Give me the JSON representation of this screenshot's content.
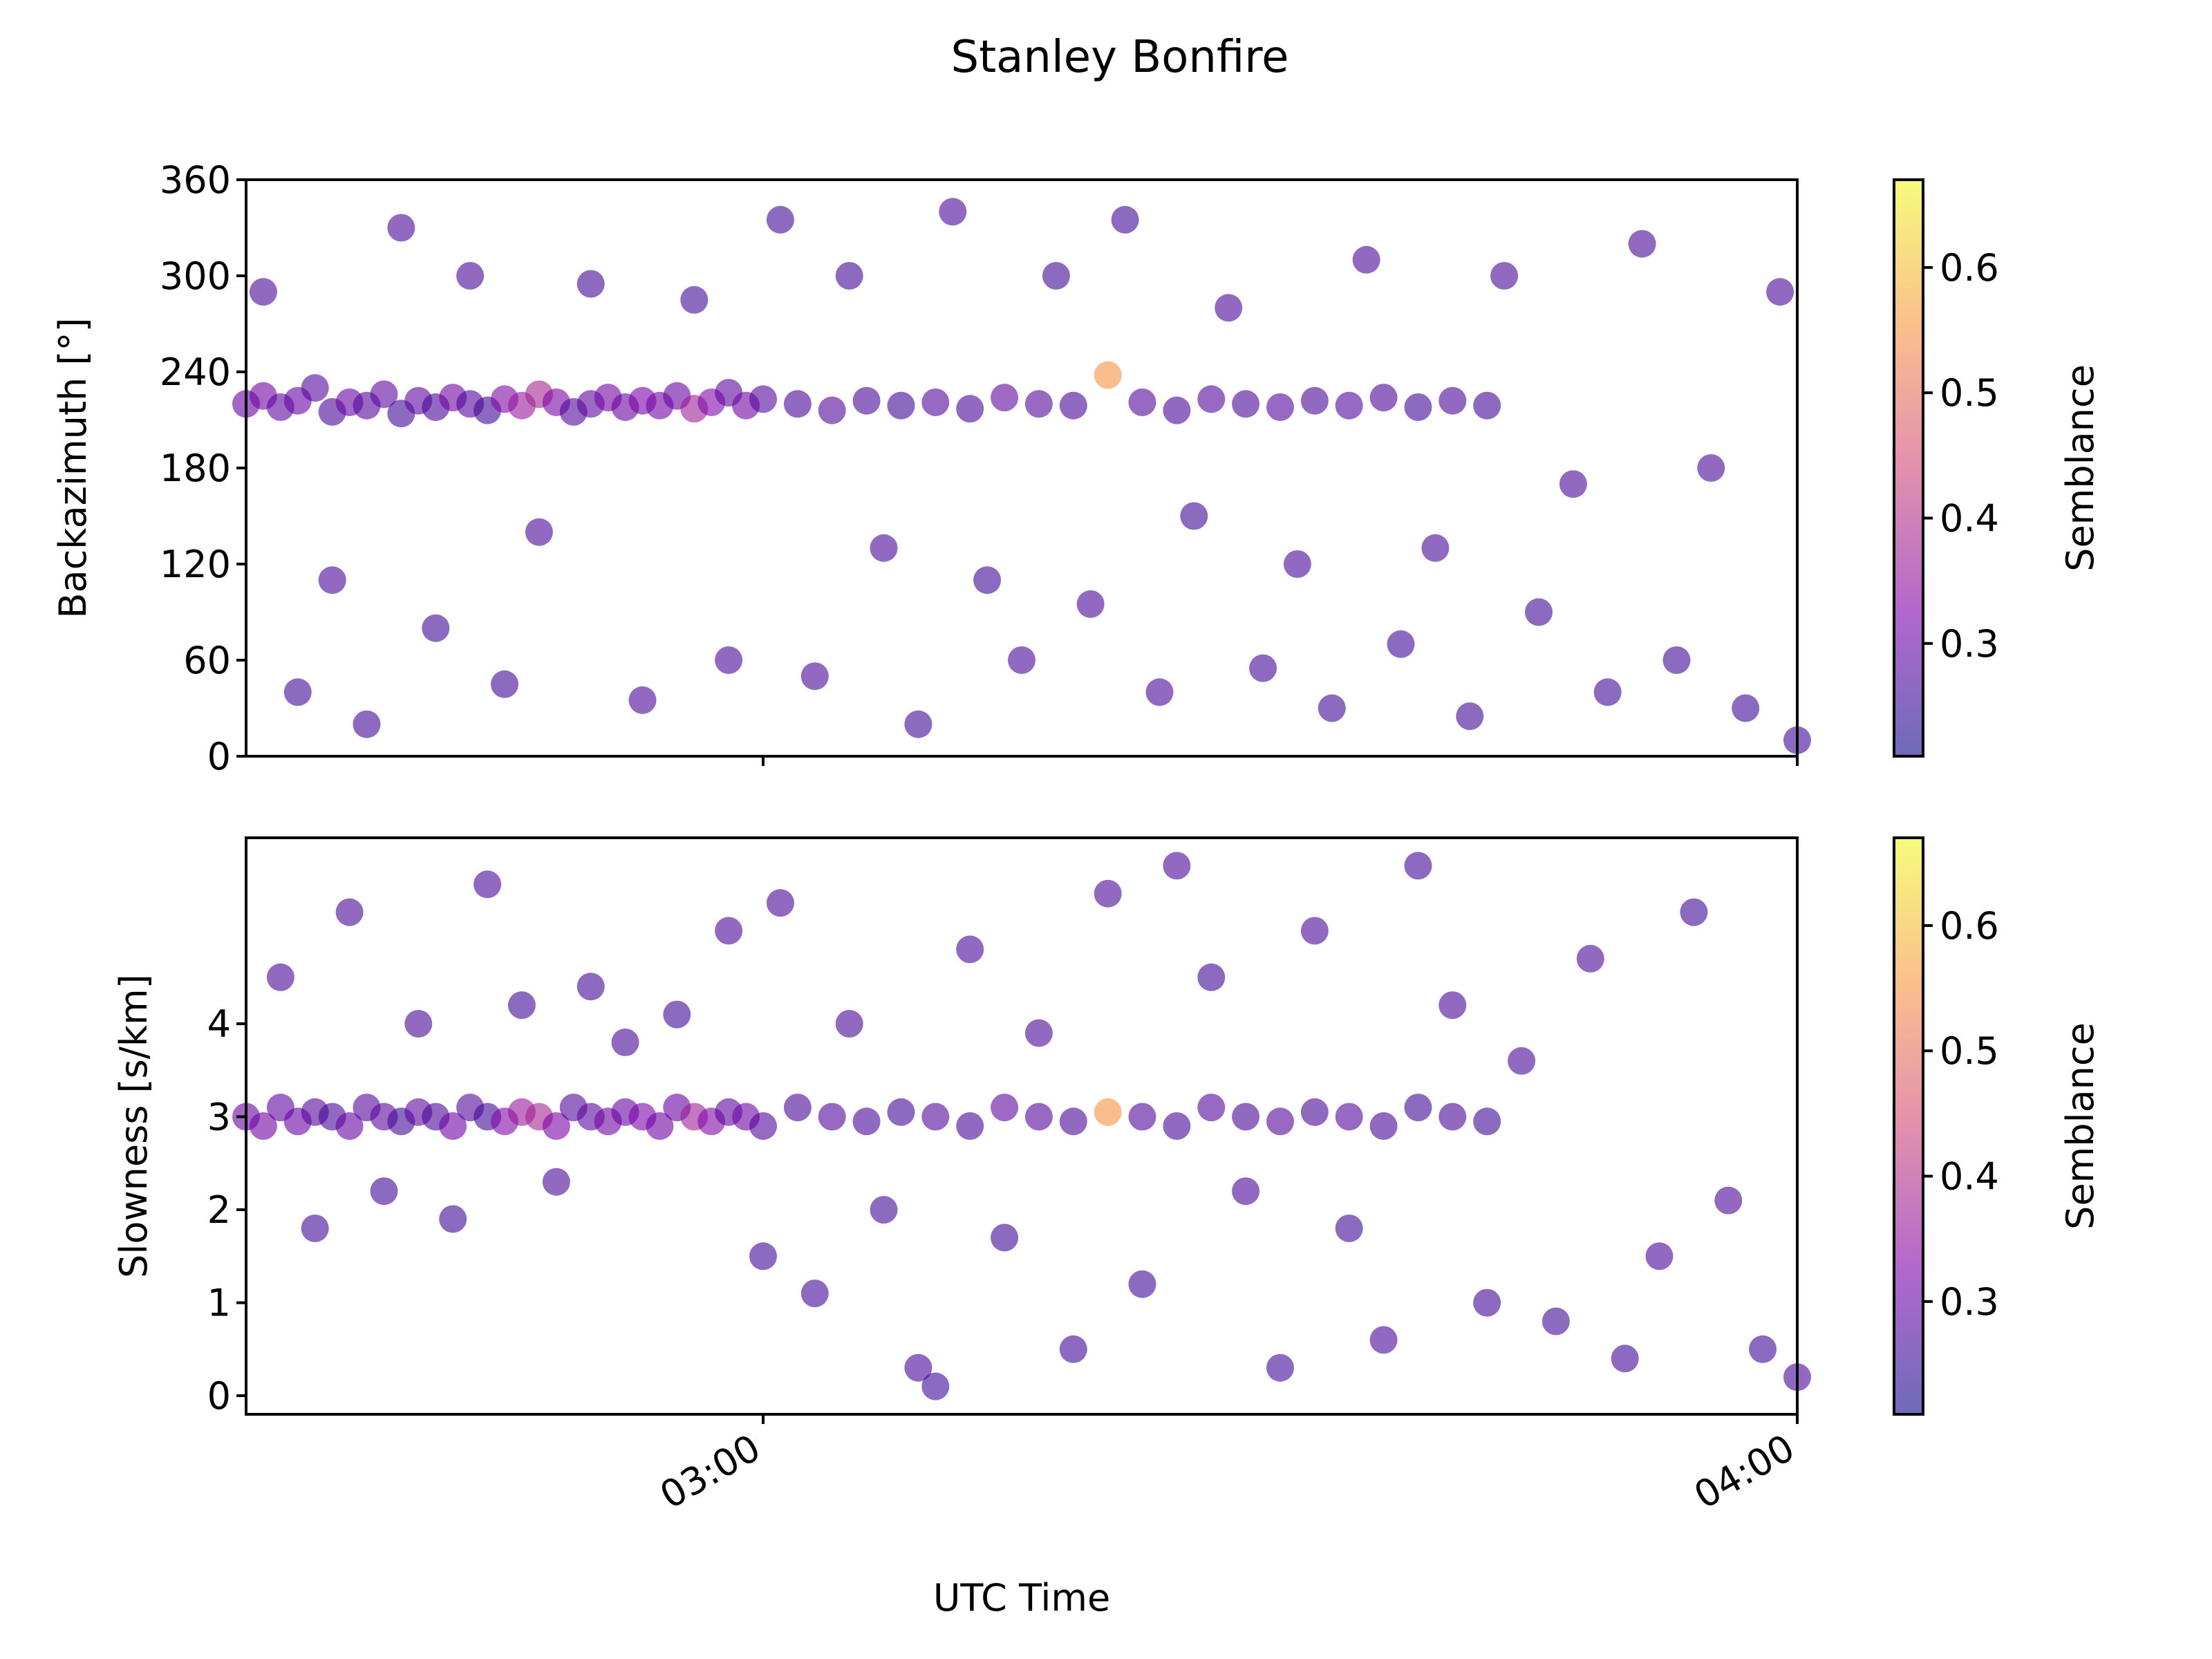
{
  "chart_data": [
    {
      "type": "scatter",
      "title": "Stanley Bonfire",
      "ylabel": "Backazimuth [$^o$]",
      "ylabel_display": "Backazimuth [°]",
      "ylim": [
        0,
        360
      ],
      "yticks": [
        0,
        60,
        120,
        180,
        240,
        300,
        360
      ],
      "xlim": [
        "02:30",
        "04:00"
      ],
      "xticks": [
        "03:00",
        "04:00"
      ],
      "colorbar": {
        "label": "Semblance",
        "range": [
          0.21,
          0.67
        ],
        "ticks": [
          0.3,
          0.4,
          0.5,
          0.6
        ],
        "colormap": "plasma",
        "alpha": 0.6
      },
      "description": "Dense persistent cluster near 210-230° across the full window; scattered detections elsewhere between 0° and 360°.",
      "series": [
        {
          "points": [
            [
              "02:30",
              220,
              0.3
            ],
            [
              "02:31",
              225,
              0.31
            ],
            [
              "02:32",
              218,
              0.29
            ],
            [
              "02:33",
              222,
              0.3
            ],
            [
              "02:34",
              230,
              0.28
            ],
            [
              "02:35",
              215,
              0.27
            ],
            [
              "02:36",
              221,
              0.3
            ],
            [
              "02:37",
              219,
              0.28
            ],
            [
              "02:38",
              226,
              0.29
            ],
            [
              "02:39",
              214,
              0.26
            ],
            [
              "02:40",
              222,
              0.29
            ],
            [
              "02:41",
              218,
              0.27
            ],
            [
              "02:42",
              224,
              0.31
            ],
            [
              "02:43",
              220,
              0.28
            ],
            [
              "02:44",
              216,
              0.26
            ],
            [
              "02:45",
              223,
              0.33
            ],
            [
              "02:46",
              219,
              0.36
            ],
            [
              "02:47",
              226,
              0.38
            ],
            [
              "02:48",
              221,
              0.32
            ],
            [
              "02:49",
              215,
              0.28
            ],
            [
              "02:50",
              220,
              0.29
            ],
            [
              "02:51",
              224,
              0.31
            ],
            [
              "02:52",
              218,
              0.3
            ],
            [
              "02:53",
              222,
              0.32
            ],
            [
              "02:54",
              219,
              0.31
            ],
            [
              "02:55",
              225,
              0.3
            ],
            [
              "02:56",
              217,
              0.37
            ],
            [
              "02:57",
              221,
              0.33
            ],
            [
              "02:58",
              227,
              0.29
            ],
            [
              "02:59",
              219,
              0.31
            ],
            [
              "03:00",
              223,
              0.28
            ],
            [
              "03:02",
              220,
              0.27
            ],
            [
              "03:04",
              216,
              0.28
            ],
            [
              "03:06",
              222,
              0.27
            ],
            [
              "03:08",
              219,
              0.26
            ],
            [
              "03:10",
              221,
              0.28
            ],
            [
              "03:12",
              217,
              0.27
            ],
            [
              "03:14",
              224,
              0.29
            ],
            [
              "03:16",
              220,
              0.28
            ],
            [
              "03:18",
              219,
              0.27
            ],
            [
              "03:20",
              238,
              0.55
            ],
            [
              "03:22",
              221,
              0.28
            ],
            [
              "03:24",
              216,
              0.27
            ],
            [
              "03:26",
              223,
              0.28
            ],
            [
              "03:28",
              220,
              0.27
            ],
            [
              "03:30",
              218,
              0.28
            ],
            [
              "03:32",
              222,
              0.27
            ],
            [
              "03:34",
              219,
              0.28
            ],
            [
              "03:36",
              224,
              0.27
            ],
            [
              "03:38",
              218,
              0.26
            ],
            [
              "03:40",
              222,
              0.27
            ],
            [
              "03:42",
              219,
              0.26
            ],
            [
              "02:31",
              290,
              0.27
            ],
            [
              "02:33",
              40,
              0.26
            ],
            [
              "02:35",
              110,
              0.27
            ],
            [
              "02:37",
              20,
              0.26
            ],
            [
              "02:39",
              330,
              0.27
            ],
            [
              "02:41",
              80,
              0.26
            ],
            [
              "02:43",
              300,
              0.27
            ],
            [
              "02:45",
              45,
              0.26
            ],
            [
              "02:47",
              140,
              0.27
            ],
            [
              "02:50",
              295,
              0.26
            ],
            [
              "02:53",
              35,
              0.27
            ],
            [
              "02:56",
              285,
              0.26
            ],
            [
              "02:58",
              60,
              0.27
            ],
            [
              "03:01",
              335,
              0.26
            ],
            [
              "03:03",
              50,
              0.27
            ],
            [
              "03:05",
              300,
              0.26
            ],
            [
              "03:07",
              130,
              0.27
            ],
            [
              "03:09",
              20,
              0.26
            ],
            [
              "03:11",
              340,
              0.27
            ],
            [
              "03:13",
              110,
              0.26
            ],
            [
              "03:15",
              60,
              0.27
            ],
            [
              "03:17",
              300,
              0.26
            ],
            [
              "03:19",
              95,
              0.27
            ],
            [
              "03:21",
              335,
              0.26
            ],
            [
              "03:23",
              40,
              0.27
            ],
            [
              "03:25",
              150,
              0.26
            ],
            [
              "03:27",
              280,
              0.27
            ],
            [
              "03:29",
              55,
              0.26
            ],
            [
              "03:31",
              120,
              0.27
            ],
            [
              "03:33",
              30,
              0.26
            ],
            [
              "03:35",
              310,
              0.27
            ],
            [
              "03:37",
              70,
              0.26
            ],
            [
              "03:39",
              130,
              0.27
            ],
            [
              "03:41",
              25,
              0.26
            ],
            [
              "03:43",
              300,
              0.27
            ],
            [
              "03:45",
              90,
              0.26
            ],
            [
              "03:47",
              170,
              0.27
            ],
            [
              "03:49",
              40,
              0.26
            ],
            [
              "03:51",
              320,
              0.27
            ],
            [
              "03:53",
              60,
              0.26
            ],
            [
              "03:55",
              180,
              0.27
            ],
            [
              "03:57",
              30,
              0.26
            ],
            [
              "03:59",
              290,
              0.27
            ],
            [
              "04:00",
              10,
              0.26
            ]
          ]
        }
      ]
    },
    {
      "type": "scatter",
      "ylabel": "Slowness [s/km]",
      "xlabel": "UTC Time",
      "ylim": [
        -0.2,
        6.0
      ],
      "yticks": [
        0,
        1,
        2,
        3,
        4
      ],
      "xlim": [
        "02:30",
        "04:00"
      ],
      "xticks": [
        "03:00",
        "04:00"
      ],
      "colorbar": {
        "label": "Semblance",
        "range": [
          0.21,
          0.67
        ],
        "ticks": [
          0.3,
          0.4,
          0.5,
          0.6
        ],
        "colormap": "plasma",
        "alpha": 0.6
      },
      "description": "Dense band near 3 s/km across the window with scatter from 0 to about 5.8 s/km.",
      "series": [
        {
          "points": [
            [
              "02:30",
              3.0,
              0.3
            ],
            [
              "02:31",
              2.9,
              0.31
            ],
            [
              "02:32",
              3.1,
              0.29
            ],
            [
              "02:33",
              2.95,
              0.3
            ],
            [
              "02:34",
              3.05,
              0.28
            ],
            [
              "02:35",
              3.0,
              0.27
            ],
            [
              "02:36",
              2.9,
              0.3
            ],
            [
              "02:37",
              3.1,
              0.28
            ],
            [
              "02:38",
              3.0,
              0.29
            ],
            [
              "02:39",
              2.95,
              0.26
            ],
            [
              "02:40",
              3.05,
              0.29
            ],
            [
              "02:41",
              3.0,
              0.27
            ],
            [
              "02:42",
              2.9,
              0.31
            ],
            [
              "02:43",
              3.1,
              0.28
            ],
            [
              "02:44",
              3.0,
              0.26
            ],
            [
              "02:45",
              2.95,
              0.33
            ],
            [
              "02:46",
              3.05,
              0.36
            ],
            [
              "02:47",
              3.0,
              0.38
            ],
            [
              "02:48",
              2.9,
              0.32
            ],
            [
              "02:49",
              3.1,
              0.28
            ],
            [
              "02:50",
              3.0,
              0.29
            ],
            [
              "02:51",
              2.95,
              0.31
            ],
            [
              "02:52",
              3.05,
              0.3
            ],
            [
              "02:53",
              3.0,
              0.32
            ],
            [
              "02:54",
              2.9,
              0.31
            ],
            [
              "02:55",
              3.1,
              0.3
            ],
            [
              "02:56",
              3.0,
              0.37
            ],
            [
              "02:57",
              2.95,
              0.33
            ],
            [
              "02:58",
              3.05,
              0.29
            ],
            [
              "02:59",
              3.0,
              0.31
            ],
            [
              "03:00",
              2.9,
              0.28
            ],
            [
              "03:02",
              3.1,
              0.27
            ],
            [
              "03:04",
              3.0,
              0.28
            ],
            [
              "03:06",
              2.95,
              0.27
            ],
            [
              "03:08",
              3.05,
              0.26
            ],
            [
              "03:10",
              3.0,
              0.28
            ],
            [
              "03:12",
              2.9,
              0.27
            ],
            [
              "03:14",
              3.1,
              0.29
            ],
            [
              "03:16",
              3.0,
              0.28
            ],
            [
              "03:18",
              2.95,
              0.27
            ],
            [
              "03:20",
              3.05,
              0.55
            ],
            [
              "03:22",
              3.0,
              0.28
            ],
            [
              "03:24",
              2.9,
              0.27
            ],
            [
              "03:26",
              3.1,
              0.28
            ],
            [
              "03:28",
              3.0,
              0.27
            ],
            [
              "03:30",
              2.95,
              0.28
            ],
            [
              "03:32",
              3.05,
              0.27
            ],
            [
              "03:34",
              3.0,
              0.28
            ],
            [
              "03:36",
              2.9,
              0.27
            ],
            [
              "03:38",
              3.1,
              0.26
            ],
            [
              "03:40",
              3.0,
              0.27
            ],
            [
              "03:42",
              2.95,
              0.26
            ],
            [
              "02:32",
              4.5,
              0.27
            ],
            [
              "02:34",
              1.8,
              0.26
            ],
            [
              "02:36",
              5.2,
              0.27
            ],
            [
              "02:38",
              2.2,
              0.26
            ],
            [
              "02:40",
              4.0,
              0.27
            ],
            [
              "02:42",
              1.9,
              0.26
            ],
            [
              "02:44",
              5.5,
              0.27
            ],
            [
              "02:46",
              4.2,
              0.26
            ],
            [
              "02:48",
              2.3,
              0.27
            ],
            [
              "02:50",
              4.4,
              0.26
            ],
            [
              "02:52",
              3.8,
              0.27
            ],
            [
              "02:55",
              4.1,
              0.26
            ],
            [
              "02:58",
              5.0,
              0.27
            ],
            [
              "03:00",
              1.5,
              0.26
            ],
            [
              "03:01",
              5.3,
              0.27
            ],
            [
              "03:03",
              1.1,
              0.26
            ],
            [
              "03:05",
              4.0,
              0.27
            ],
            [
              "03:07",
              2.0,
              0.26
            ],
            [
              "03:09",
              0.3,
              0.27
            ],
            [
              "03:10",
              0.1,
              0.26
            ],
            [
              "03:12",
              4.8,
              0.27
            ],
            [
              "03:14",
              1.7,
              0.26
            ],
            [
              "03:16",
              3.9,
              0.27
            ],
            [
              "03:18",
              0.5,
              0.26
            ],
            [
              "03:20",
              5.4,
              0.27
            ],
            [
              "03:22",
              1.2,
              0.26
            ],
            [
              "03:24",
              5.7,
              0.27
            ],
            [
              "03:26",
              4.5,
              0.26
            ],
            [
              "03:28",
              2.2,
              0.27
            ],
            [
              "03:30",
              0.3,
              0.26
            ],
            [
              "03:32",
              5.0,
              0.27
            ],
            [
              "03:34",
              1.8,
              0.26
            ],
            [
              "03:36",
              0.6,
              0.27
            ],
            [
              "03:38",
              5.7,
              0.26
            ],
            [
              "03:40",
              4.2,
              0.27
            ],
            [
              "03:42",
              1.0,
              0.26
            ],
            [
              "03:44",
              3.6,
              0.27
            ],
            [
              "03:46",
              0.8,
              0.26
            ],
            [
              "03:48",
              4.7,
              0.27
            ],
            [
              "03:50",
              0.4,
              0.26
            ],
            [
              "03:52",
              1.5,
              0.27
            ],
            [
              "03:54",
              5.2,
              0.26
            ],
            [
              "03:56",
              2.1,
              0.27
            ],
            [
              "03:58",
              0.5,
              0.26
            ],
            [
              "04:00",
              0.2,
              0.27
            ]
          ]
        }
      ]
    }
  ]
}
